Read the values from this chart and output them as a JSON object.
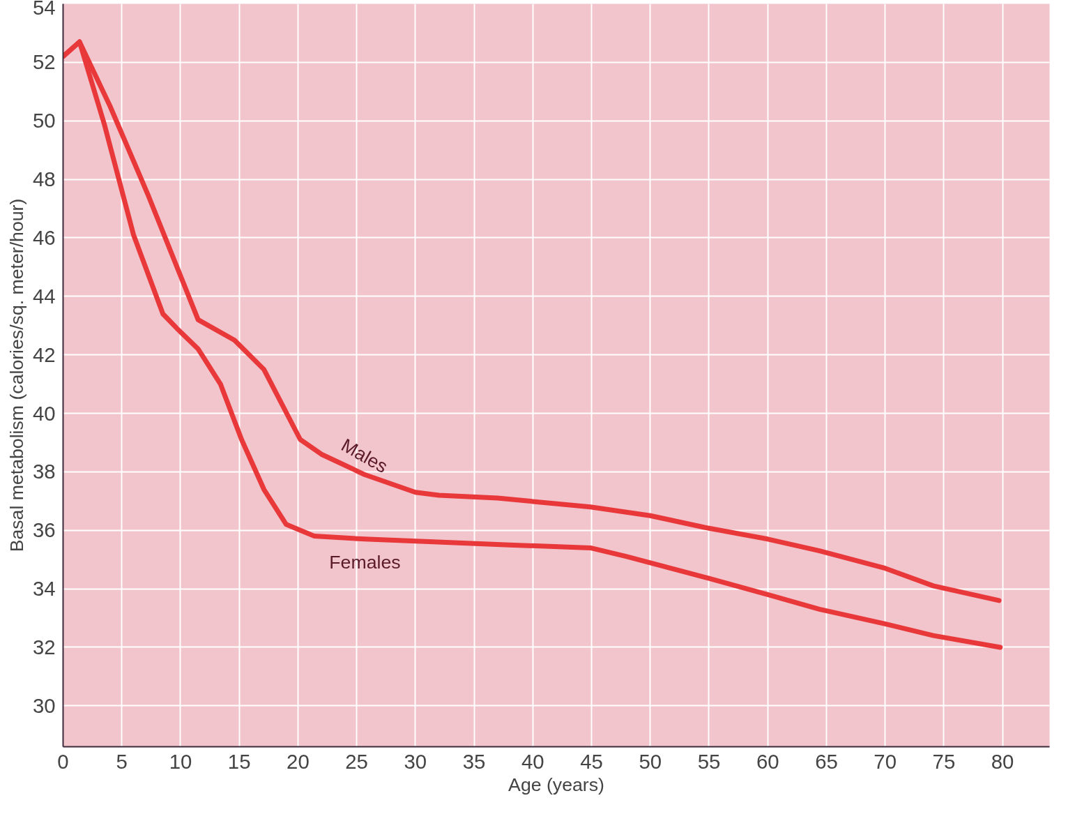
{
  "chart_data": {
    "type": "line",
    "xlabel": "Age (years)",
    "ylabel": "Basal metabolism (calories/sq. meter/hour)",
    "xlim": [
      0,
      84
    ],
    "ylim": [
      28.6,
      54
    ],
    "xticks": [
      0,
      5,
      10,
      15,
      20,
      25,
      30,
      35,
      40,
      45,
      50,
      55,
      60,
      65,
      70,
      75,
      80
    ],
    "yticks": [
      30,
      32,
      34,
      36,
      38,
      40,
      42,
      44,
      46,
      48,
      50,
      52,
      54
    ],
    "grid": true,
    "marker": "none",
    "line_style": "solid",
    "series": [
      {
        "name": "Males",
        "color": "#e8383a",
        "x": [
          0,
          1.4,
          4,
          7.2,
          11.5,
          14.6,
          17.1,
          20.2,
          22,
          25.7,
          30,
          32,
          37,
          44.9,
          50,
          54.6,
          60,
          64.4,
          70,
          74.1,
          79.7
        ],
        "values": [
          52.2,
          52.7,
          50.5,
          47.5,
          43.2,
          42.5,
          41.5,
          39.1,
          38.6,
          37.9,
          37.3,
          37.2,
          37.1,
          36.8,
          36.5,
          36.1,
          35.7,
          35.3,
          34.7,
          34.1,
          33.6
        ]
      },
      {
        "name": "Females",
        "color": "#e8383a",
        "x": [
          0,
          1.4,
          3.5,
          6,
          8.5,
          9.7,
          11.5,
          13.4,
          15.2,
          17.1,
          19,
          21.4,
          25.7,
          31.9,
          38,
          44.9,
          48,
          54.6,
          60,
          64.4,
          70,
          74.1,
          79.8
        ],
        "values": [
          52.2,
          52.7,
          49.9,
          46.1,
          43.4,
          42.9,
          42.2,
          41.0,
          39.1,
          37.4,
          36.2,
          35.8,
          35.7,
          35.6,
          35.5,
          35.4,
          35.1,
          34.4,
          33.8,
          33.3,
          32.8,
          32.4,
          32.0
        ]
      }
    ]
  }
}
